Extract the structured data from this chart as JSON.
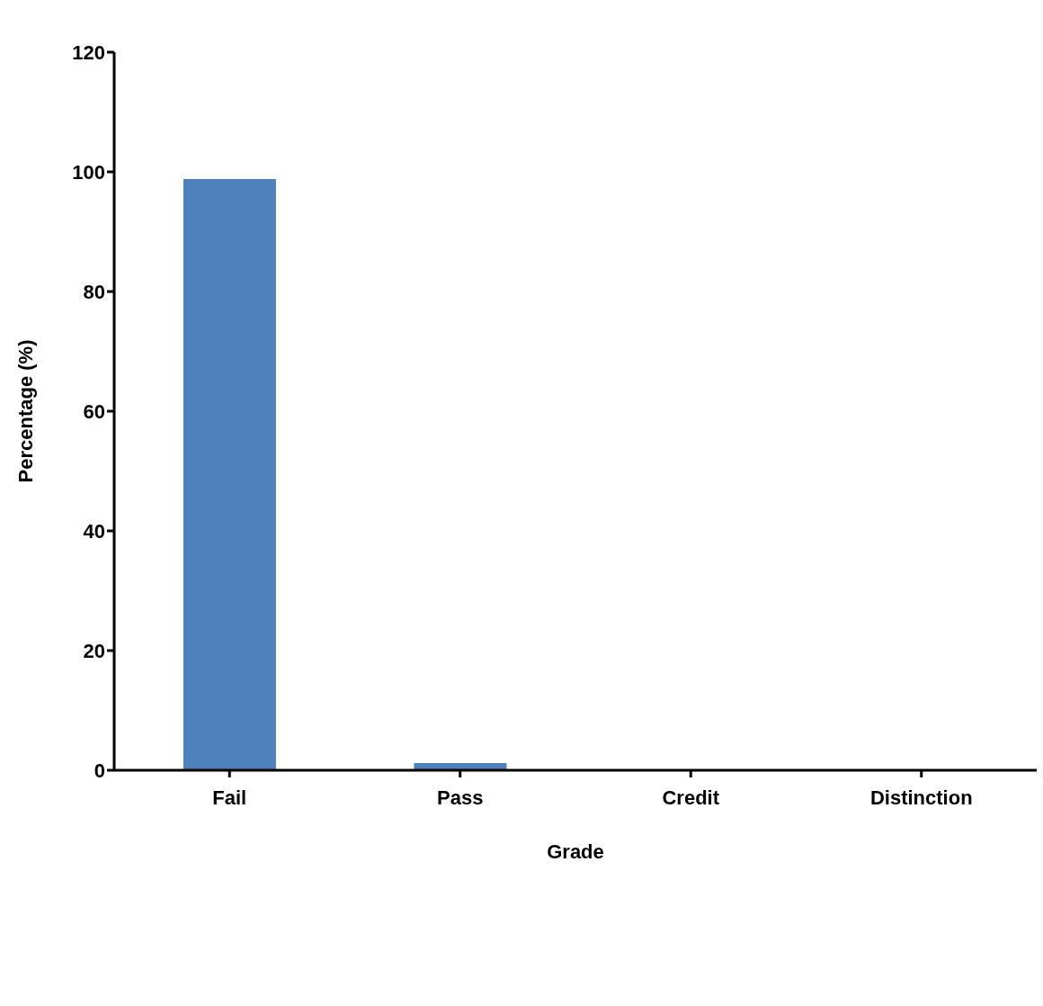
{
  "chart_data": {
    "type": "bar",
    "xlabel": "Grade",
    "ylabel": "Percentage (%)",
    "categories": [
      "Fail",
      "Pass",
      "Credit",
      "Distinction"
    ],
    "values": [
      98.8,
      1.2,
      0,
      0
    ],
    "color": "#4f81bd",
    "ylim": [
      0,
      120
    ],
    "yticks": [
      0,
      20,
      40,
      60,
      80,
      100,
      120
    ],
    "grid": false
  }
}
